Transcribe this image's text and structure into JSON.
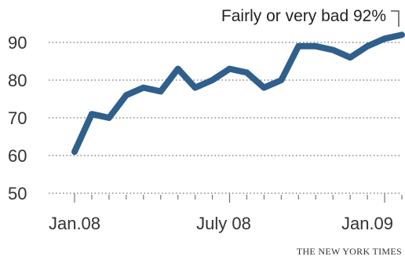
{
  "chart_data": {
    "type": "line",
    "title": "",
    "xlabel": "",
    "ylabel": "",
    "ylim": [
      50,
      92
    ],
    "y_ticks": [
      50,
      60,
      70,
      80,
      90
    ],
    "y_tick_labels": [
      "50",
      "60",
      "70",
      "80",
      "90"
    ],
    "x_tick_labels": [
      "Jan.08",
      "July 08",
      "Jan.09"
    ],
    "grid": "dotted horizontal",
    "colors": {
      "line": "#2f5f8d",
      "grid": "#888888",
      "text": "#333333"
    },
    "series": [
      {
        "values": [
          61,
          71,
          70,
          76,
          78,
          77,
          83,
          78,
          80,
          83,
          82,
          78,
          80,
          89,
          89,
          88,
          86,
          89,
          91,
          92
        ]
      }
    ],
    "annotation": "Fairly or very bad 92%"
  },
  "credit": "THE NEW YORK TIMES"
}
